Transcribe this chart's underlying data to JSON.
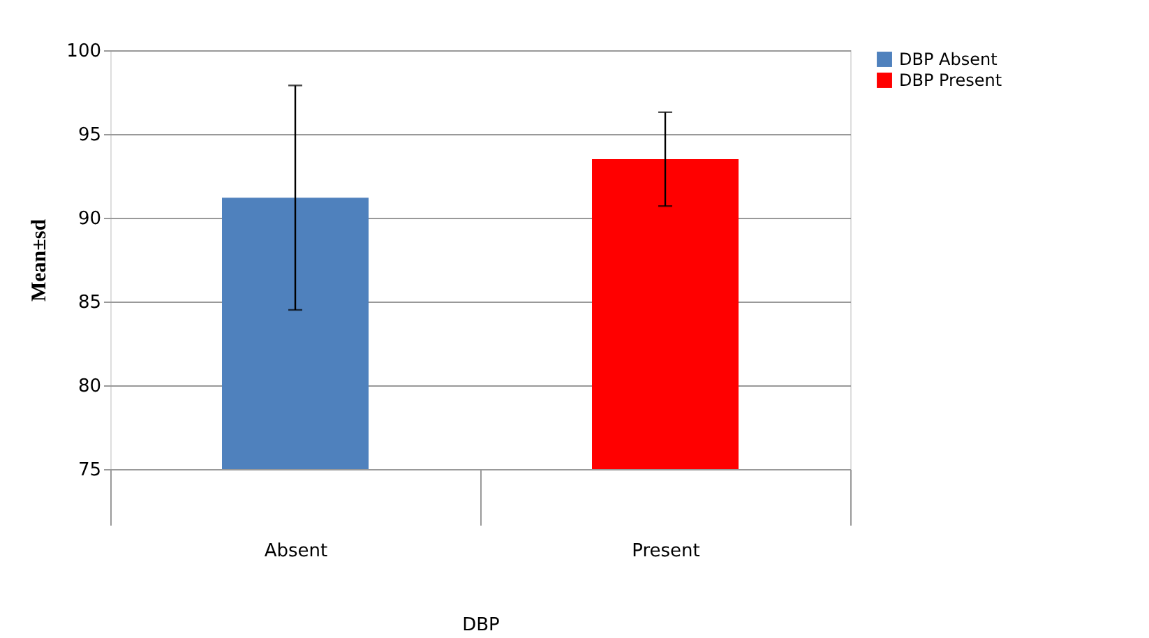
{
  "chart_data": {
    "type": "bar",
    "xlabel": "DBP",
    "ylabel": "Mean±sd",
    "categories": [
      "Absent",
      "Present"
    ],
    "series": [
      {
        "name": "DBP Absent",
        "color": "#4f81bd",
        "values": [
          91.2,
          null
        ],
        "errors": [
          6.7,
          null
        ]
      },
      {
        "name": "DBP Present",
        "color": "#ff0000",
        "values": [
          null,
          93.5
        ],
        "errors": [
          null,
          2.8
        ]
      }
    ],
    "ylim": [
      75,
      100
    ],
    "yticks": [
      75,
      80,
      85,
      90,
      95,
      100
    ],
    "grid": "y",
    "legend": "right"
  }
}
